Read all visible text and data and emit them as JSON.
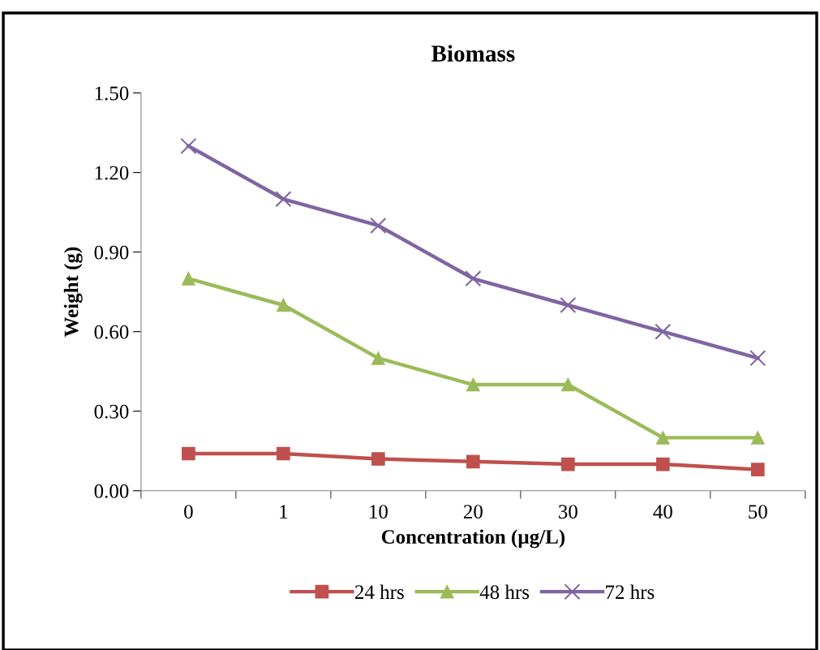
{
  "chart_data": {
    "type": "line",
    "title": "Biomass",
    "xlabel": "Concentration (µg/L)",
    "ylabel": "Weight (g)",
    "categories": [
      "0",
      "1",
      "10",
      "20",
      "30",
      "40",
      "50"
    ],
    "series": [
      {
        "name": "24 hrs",
        "color": "#c0504d",
        "marker": "square",
        "values": [
          0.14,
          0.14,
          0.12,
          0.11,
          0.1,
          0.1,
          0.08
        ]
      },
      {
        "name": "48 hrs",
        "color": "#9bbb59",
        "marker": "triangle",
        "values": [
          0.8,
          0.7,
          0.5,
          0.4,
          0.4,
          0.2,
          0.2
        ]
      },
      {
        "name": "72 hrs",
        "color": "#8064a2",
        "marker": "cross",
        "values": [
          1.3,
          1.1,
          1.0,
          0.8,
          0.7,
          0.6,
          0.5
        ]
      }
    ],
    "ylim": [
      0,
      1.5
    ],
    "yticks": [
      {
        "value": 0,
        "label": "0.00"
      },
      {
        "value": 0.3,
        "label": "0.30"
      },
      {
        "value": 0.6,
        "label": "0.60"
      },
      {
        "value": 0.9,
        "label": "0.90"
      },
      {
        "value": 1.2,
        "label": "1.20"
      },
      {
        "value": 1.5,
        "label": "1.50"
      }
    ],
    "grid": false,
    "legend": "bottom",
    "line_style": "solid"
  }
}
